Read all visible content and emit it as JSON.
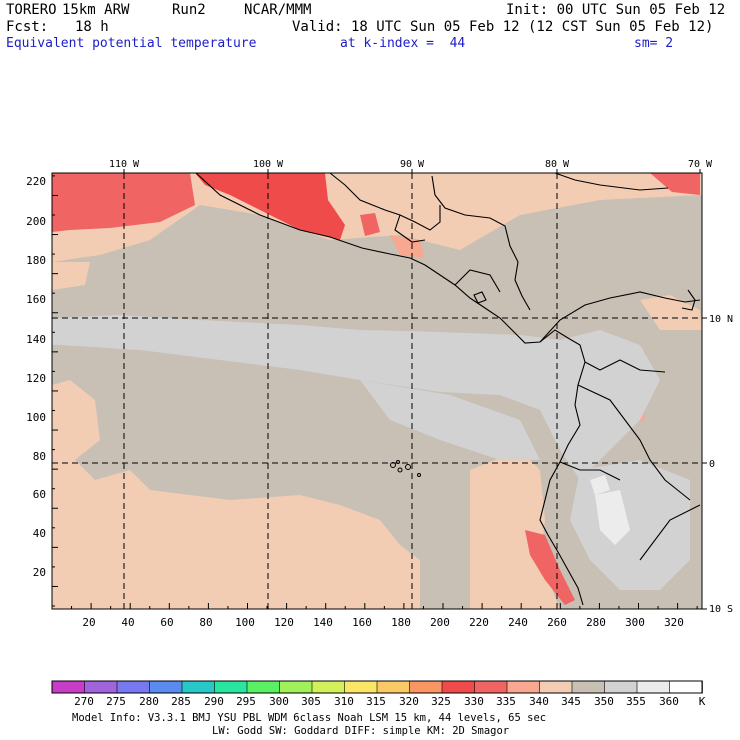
{
  "header": {
    "model": "TORERO",
    "resolution": "15km ARW",
    "run": "Run2",
    "org": "NCAR/MMM",
    "init": "Init: 00 UTC Sun 05 Feb 12",
    "fcst_label": "Fcst:",
    "fcst_value": "18 h",
    "valid": "Valid: 18 UTC Sun 05 Feb 12 (12 CST Sun 05 Feb 12)",
    "field": "Equivalent potential temperature",
    "level": "at k-index =  44",
    "smoothing": "sm= 2"
  },
  "map": {
    "lon_labels": [
      "110 W",
      "100 W",
      "90 W",
      "80 W",
      "70 W"
    ],
    "lat_labels": [
      "10 N",
      "0",
      "10 S"
    ],
    "y_ticks": [
      "220",
      "200",
      "180",
      "160",
      "140",
      "120",
      "100",
      "80",
      "60",
      "40",
      "20"
    ],
    "x_ticks": [
      "20",
      "40",
      "60",
      "80",
      "100",
      "120",
      "140",
      "160",
      "180",
      "200",
      "220",
      "240",
      "260",
      "280",
      "300",
      "320"
    ]
  },
  "legend": {
    "labels": [
      "270",
      "275",
      "280",
      "285",
      "290",
      "295",
      "300",
      "305",
      "310",
      "315",
      "320",
      "325",
      "330",
      "335",
      "340",
      "345",
      "350",
      "355",
      "360"
    ],
    "unit": "K",
    "colors": [
      "#c83cc8",
      "#a064dc",
      "#7878f0",
      "#5a8cf0",
      "#28c8c8",
      "#28e6a0",
      "#5af064",
      "#a0f05a",
      "#d2f05a",
      "#fae664",
      "#fac864",
      "#fa9664",
      "#f04b4b",
      "#f06464",
      "#f8a890",
      "#f2cdb4",
      "#c8bfb5",
      "#d2d2d2",
      "#ececec",
      "#ffffff"
    ]
  },
  "footer": {
    "line1": "Model Info: V3.3.1    BMJ     YSU PBL   WDM 6class  Noah LSM  15 km,   44 levels,   65 sec",
    "line2": "LW: Godd SW: Goddard DIFF: simple KM: 2D Smagor"
  }
}
